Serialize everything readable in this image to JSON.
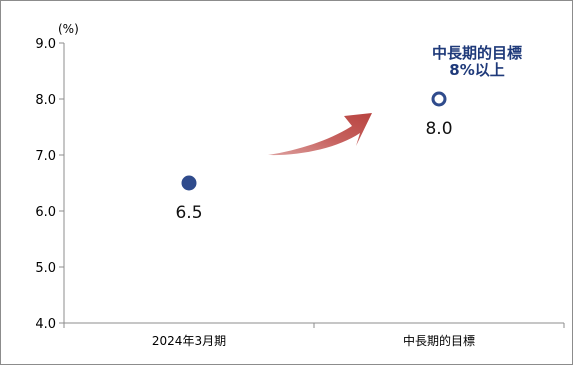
{
  "chart_data": {
    "type": "scatter",
    "unit": "(%)",
    "categories": [
      "2024年3月期",
      "中長期的目標"
    ],
    "values": [
      6.5,
      8.0
    ],
    "value_labels": [
      "6.5",
      "8.0"
    ],
    "ylim": [
      4.0,
      9.0
    ],
    "y_ticks": [
      "4.0",
      "5.0",
      "6.0",
      "7.0",
      "8.0",
      "9.0"
    ],
    "grid": false,
    "legend": "none",
    "annotation": {
      "line1": "中長期的目標",
      "line2": "8%以上"
    },
    "colors": {
      "marker": "#2f4b8c",
      "arrow": "#c0504d",
      "annotation_text": "#1f3a7a",
      "axis": "#8c8c8c"
    }
  }
}
